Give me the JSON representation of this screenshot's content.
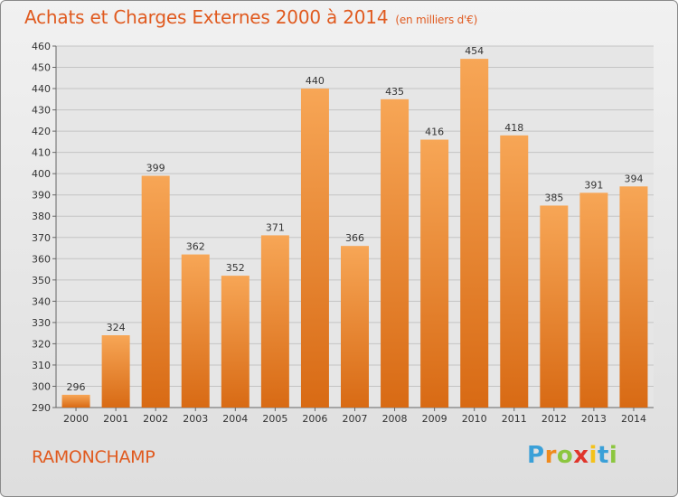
{
  "title": "Achats et Charges Externes 2000 à 2014",
  "unit": "(en milliers d'€)",
  "commune": "RAMONCHAMP",
  "brand": {
    "letters": [
      "P",
      "r",
      "o",
      "x",
      "i",
      "t",
      "i"
    ],
    "colors": [
      "#3aa0d8",
      "#f08a1c",
      "#8cc63f",
      "#e0352b",
      "#f4c21a",
      "#3aa0d8",
      "#8cc63f"
    ]
  },
  "colors": {
    "accent": "#e05a1f",
    "bar_light": "#f7a656",
    "bar_dark": "#d86a14"
  },
  "chart_data": {
    "type": "bar",
    "categories": [
      "2000",
      "2001",
      "2002",
      "2003",
      "2004",
      "2005",
      "2006",
      "2007",
      "2008",
      "2009",
      "2010",
      "2011",
      "2012",
      "2013",
      "2014"
    ],
    "values": [
      296,
      324,
      399,
      362,
      352,
      371,
      440,
      366,
      435,
      416,
      454,
      418,
      385,
      391,
      394
    ],
    "yticks": [
      290,
      300,
      310,
      320,
      330,
      340,
      350,
      360,
      370,
      380,
      390,
      400,
      410,
      420,
      430,
      440,
      450,
      460
    ],
    "ylim": [
      290,
      460
    ],
    "grid": true
  }
}
